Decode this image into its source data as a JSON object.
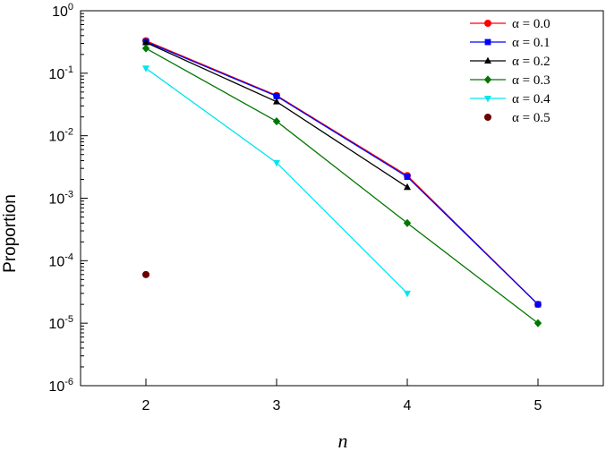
{
  "chart_data": {
    "type": "line",
    "xlabel": "n",
    "ylabel": "Proportion",
    "x_ticks": [
      2,
      3,
      4,
      5
    ],
    "xlim": [
      1.5,
      5.5
    ],
    "y_scale": "log",
    "ylim": [
      1e-06,
      1
    ],
    "y_tick_exponents": [
      "0",
      "-1",
      "-2",
      "-3",
      "-4",
      "-5",
      "-6"
    ],
    "y_tick_base": "10",
    "legend_position": "top-right",
    "grid": false,
    "series": [
      {
        "name": "α = 0.0",
        "color": "#ff0000",
        "marker": "circle",
        "line": true,
        "x": [
          2,
          3,
          4,
          5
        ],
        "y": [
          0.33,
          0.044,
          0.0023,
          2e-05
        ]
      },
      {
        "name": "α = 0.1",
        "color": "#0000ff",
        "marker": "square",
        "line": true,
        "x": [
          2,
          3,
          4,
          5
        ],
        "y": [
          0.32,
          0.043,
          0.0022,
          2e-05
        ]
      },
      {
        "name": "α = 0.2",
        "color": "#000000",
        "marker": "triangle-up",
        "line": true,
        "x": [
          2,
          3,
          4
        ],
        "y": [
          0.31,
          0.035,
          0.0015
        ]
      },
      {
        "name": "α = 0.3",
        "color": "#007700",
        "marker": "diamond",
        "line": true,
        "x": [
          2,
          3,
          4,
          5
        ],
        "y": [
          0.25,
          0.017,
          0.0004,
          1e-05
        ]
      },
      {
        "name": "α = 0.4",
        "color": "#00e5ee",
        "marker": "triangle-down",
        "line": true,
        "x": [
          2,
          3,
          4
        ],
        "y": [
          0.12,
          0.0037,
          3e-05
        ]
      },
      {
        "name": "α = 0.5",
        "color": "#6b0000",
        "marker": "circle",
        "line": false,
        "x": [
          2
        ],
        "y": [
          6e-05
        ]
      }
    ]
  }
}
